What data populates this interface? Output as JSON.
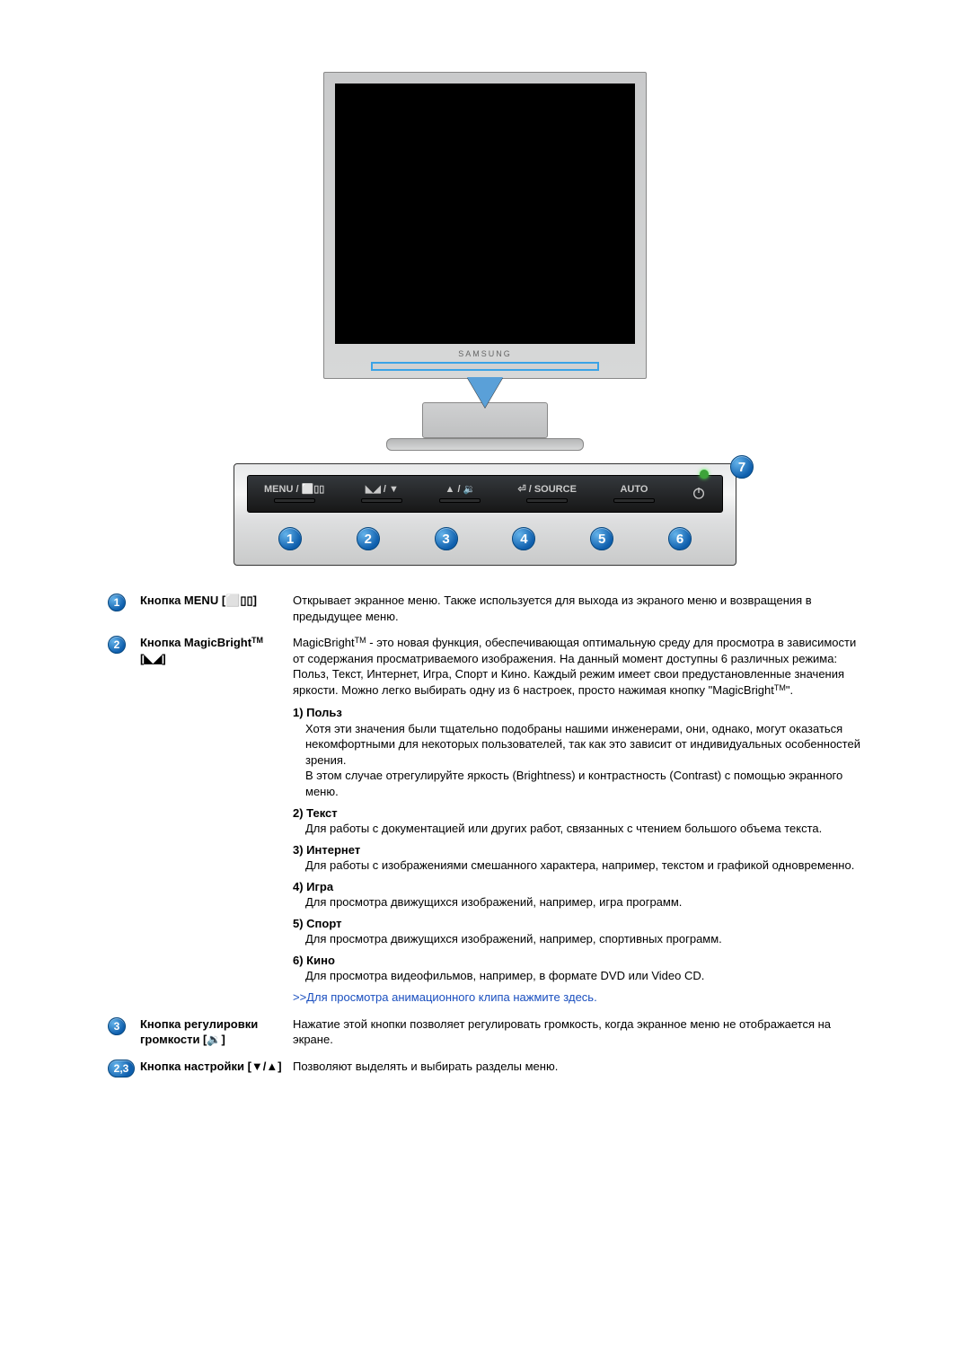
{
  "monitor": {
    "brand": "SAMSUNG",
    "bezel_color": "#d3d4d5",
    "screen_color": "#000000",
    "highlight_border": "#3aa3e6",
    "arrow_color": "#5aa0d8"
  },
  "panel": {
    "bg_top": "#e8e9ea",
    "bg_bottom": "#c9caca",
    "inner_bg": "#1f2124",
    "label_color": "#c9c9c9",
    "segments": [
      {
        "label": "MENU / ⬜▯▯"
      },
      {
        "label": "◣◢ / ▼"
      },
      {
        "label": "▲ / 🔉"
      },
      {
        "label": "⏎ / SOURCE"
      },
      {
        "label": "AUTO"
      }
    ],
    "led_color": "#3da33a",
    "callout7": "7"
  },
  "numbers": [
    "1",
    "2",
    "3",
    "4",
    "5",
    "6"
  ],
  "bubble": {
    "grad_from": "#64b3ea",
    "grad_to": "#0f5fad",
    "text_color": "#ffffff"
  },
  "table": {
    "r1": {
      "num": "1",
      "label": "Кнопка MENU [⬜▯▯]",
      "body": "Открывает экранное меню. Также используется для выхода из экраного меню и возвращения в предыдущее меню."
    },
    "r2": {
      "num": "2",
      "label_a": "Кнопка MagicBright",
      "label_tm": "TM",
      "label_b": "[◣◢]",
      "intro_a": "MagicBright",
      "intro_b": " - это новая функция, обеспечивающая оптимальную среду для просмотра в зависимости от содержания просматриваемого изображения. На данный момент доступны 6 различных режима: Польз, Текст, Интернет, Игра, Спорт и Кино. Каждый режим имеет свои предустановленные значения яркости. Можно легко выбирать одну из 6 настроек, просто нажимая кнопку \"MagicBright",
      "intro_c": "\".",
      "modes": [
        {
          "t": "1) Польз",
          "b": "Хотя эти значения были тщательно подобраны нашими инженерами, они, однако, могут оказаться некомфортными для некоторых пользователей, так как это зависит от индивидуальных особенностей зрения.\nВ этом случае отрегулируйте яркость (Brightness) и контрастность (Contrast) с помощью экранного меню."
        },
        {
          "t": "2) Текст",
          "b": "Для работы с документацией или других работ, связанных с чтением большого объема текста."
        },
        {
          "t": "3) Интернет",
          "b": "Для работы с изображениями смешанного характера, например, текстом и графикой одновременно."
        },
        {
          "t": "4) Игра",
          "b": "Для просмотра движущихся изображений, например, игра программ."
        },
        {
          "t": "5) Спорт",
          "b": "Для просмотра движущихся изображений, например, спортивных программ."
        },
        {
          "t": "6) Кино",
          "b": "Для просмотра видеофильмов, например, в формате DVD или Video CD."
        }
      ],
      "link": ">>Для просмотра анимационного клипа нажмите здесь."
    },
    "r3": {
      "num": "3",
      "label": "Кнопка регулировки громкости [🔉]",
      "body": "Нажатие этой кнопки позволяет регулировать громкость, когда экранное меню не отображается на экране."
    },
    "r4": {
      "num": "2,3",
      "label": "Кнопка настройки [▼/▲]",
      "body": "Позволяют выделять и выбирать разделы меню."
    }
  },
  "link_color": "#1a4fbf"
}
